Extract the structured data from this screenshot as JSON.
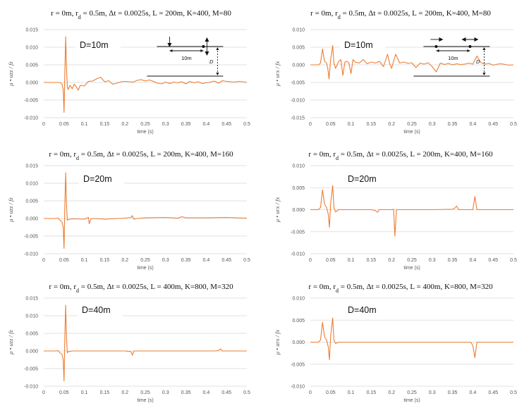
{
  "chart_data": [
    {
      "type": "line",
      "title": "r = 0m,   rd = 0.5m,   Δt = 0.0025s,   L = 200m,   K=400,   M=80",
      "panel_label": "D=10m",
      "ylabel": "μ • uzz / fz",
      "xlabel": "time (s)",
      "xlim": [
        0,
        0.5
      ],
      "ylim": [
        -0.01,
        0.015
      ],
      "yticks": [
        "0.015",
        "0.010",
        "0.005",
        "0.000",
        "-0.005",
        "-0.010"
      ],
      "xticks": [
        "0",
        "0.05",
        "0.1",
        "0.15",
        "0.2",
        "0.25",
        "0.3",
        "0.35",
        "0.4",
        "0.45",
        "0.5"
      ],
      "grid": true,
      "color": "#ed7d31",
      "inset": {
        "spacing_label": "10m",
        "depth_label": "D",
        "arrows": "vertical"
      },
      "series": [
        {
          "x": [
            0,
            0.04,
            0.045,
            0.048,
            0.05,
            0.052,
            0.054,
            0.056,
            0.058,
            0.06,
            0.065,
            0.07,
            0.075,
            0.08,
            0.085,
            0.09,
            0.1,
            0.11,
            0.12,
            0.13,
            0.14,
            0.15,
            0.16,
            0.17,
            0.18,
            0.19,
            0.2,
            0.21,
            0.22,
            0.23,
            0.24,
            0.25,
            0.26,
            0.27,
            0.28,
            0.29,
            0.3,
            0.31,
            0.32,
            0.33,
            0.34,
            0.35,
            0.36,
            0.37,
            0.38,
            0.39,
            0.4,
            0.41,
            0.42,
            0.43,
            0.44,
            0.45,
            0.46,
            0.47,
            0.48,
            0.49,
            0.5
          ],
          "y": [
            0,
            0,
            -0.0005,
            -0.002,
            -0.0085,
            0.003,
            0.013,
            0.004,
            -0.001,
            -0.002,
            -0.0008,
            -0.0018,
            -0.0005,
            -0.0012,
            -0.0022,
            -0.0008,
            -0.001,
            0.0003,
            0.0004,
            0.001,
            0.0015,
            0.0002,
            0.0005,
            -0.0005,
            -0.0002,
            0.0002,
            0.0003,
            0.0002,
            0.0001,
            0.0006,
            0.0008,
            0.0004,
            0.0007,
            0.0003,
            -0.0002,
            -0.0004,
            0.0001,
            -0.0003,
            0.0001,
            -0.0001,
            0.0002,
            -0.0004,
            0.0003,
            -0.0001,
            0.0002,
            -0.0003,
            -0.0001,
            0.0001,
            0.0004,
            -0.0002,
            0.0005,
            0.0003,
            0.0002,
            0.0001,
            0.0003,
            0.0002,
            0
          ]
        }
      ]
    },
    {
      "type": "line",
      "title": "r = 0m,   rd = 0.5m,   Δt = 0.0025s,   L = 200m,   K=400,   M=80",
      "panel_label": "D=10m",
      "ylabel": "μ • urx / fx",
      "xlabel": "time (s)",
      "xlim": [
        0,
        0.5
      ],
      "ylim": [
        -0.015,
        0.01
      ],
      "yticks": [
        "0.010",
        "0.005",
        "0.000",
        "-0.005",
        "-0.010",
        "-0.015"
      ],
      "xticks": [
        "0",
        "0.05",
        "0.1",
        "0.15",
        "0.2",
        "0.25",
        "0.3",
        "0.35",
        "0.4",
        "0.45",
        "0.5"
      ],
      "grid": true,
      "color": "#ed7d31",
      "inset": {
        "spacing_label": "10m",
        "depth_label": "D",
        "arrows": "horizontal"
      },
      "series": [
        {
          "x": [
            0,
            0.02,
            0.025,
            0.03,
            0.035,
            0.04,
            0.043,
            0.046,
            0.05,
            0.055,
            0.058,
            0.062,
            0.07,
            0.075,
            0.08,
            0.085,
            0.09,
            0.095,
            0.1,
            0.105,
            0.11,
            0.12,
            0.13,
            0.14,
            0.15,
            0.16,
            0.17,
            0.18,
            0.19,
            0.195,
            0.2,
            0.21,
            0.22,
            0.23,
            0.24,
            0.25,
            0.26,
            0.27,
            0.28,
            0.29,
            0.3,
            0.31,
            0.32,
            0.33,
            0.34,
            0.35,
            0.36,
            0.37,
            0.38,
            0.39,
            0.4,
            0.41,
            0.42,
            0.43,
            0.44,
            0.45,
            0.46,
            0.47,
            0.48,
            0.49,
            0.5
          ],
          "y": [
            0,
            0,
            0.0005,
            0.0045,
            0.001,
            0.0005,
            -0.001,
            -0.004,
            0.0015,
            0.0055,
            0.0005,
            -0.001,
            0.001,
            0.0015,
            -0.003,
            0.0008,
            0.001,
            0.0005,
            -0.0025,
            0.0015,
            0.0008,
            0.0005,
            0.0015,
            0.0003,
            0.0008,
            0.0005,
            0.001,
            -0.0005,
            0.003,
            0.0005,
            -0.001,
            0.003,
            0.0005,
            0.0008,
            0.0004,
            0.0006,
            -0.0008,
            0.0005,
            0.0002,
            0.0006,
            -0.0005,
            -0.002,
            0.0005,
            0.0001,
            0.0004,
            0,
            0.0003,
            0.0001,
            0.0002,
            0.0005,
            0.0002,
            0.0025,
            0.0006,
            0.0002,
            0.0004,
            -0.0001,
            0.0002,
            0.0003,
            0.0001,
            -0.0001,
            0
          ]
        }
      ]
    },
    {
      "type": "line",
      "title": "r = 0m,   rd = 0.5m,   Δt = 0.0025s,   L = 200m,   K=400,   M=160",
      "panel_label": "D=20m",
      "ylabel": "μ • uzz / fz",
      "xlabel": "time (s)",
      "xlim": [
        0,
        0.5
      ],
      "ylim": [
        -0.01,
        0.015
      ],
      "yticks": [
        "0.015",
        "0.010",
        "0.005",
        "0.000",
        "-0.005",
        "-0.010"
      ],
      "xticks": [
        "0",
        "0.05",
        "0.1",
        "0.15",
        "0.2",
        "0.25",
        "0.3",
        "0.35",
        "0.4",
        "0.45",
        "0.5"
      ],
      "grid": true,
      "color": "#ed7d31",
      "series": [
        {
          "x": [
            0,
            0.03,
            0.035,
            0.04,
            0.045,
            0.048,
            0.05,
            0.052,
            0.054,
            0.056,
            0.058,
            0.06,
            0.07,
            0.1,
            0.11,
            0.112,
            0.116,
            0.12,
            0.15,
            0.2,
            0.215,
            0.218,
            0.222,
            0.23,
            0.25,
            0.3,
            0.33,
            0.34,
            0.35,
            0.4,
            0.45,
            0.5
          ],
          "y": [
            0,
            0,
            0.0001,
            -0.0005,
            -0.001,
            -0.0025,
            -0.0085,
            0.004,
            0.013,
            0.004,
            -0.0005,
            -0.0003,
            -0.0001,
            -0.0002,
            0.0003,
            -0.0015,
            -0.0002,
            0,
            -0.0002,
            0.0001,
            0.0003,
            0.0008,
            -0.0002,
            0,
            0.0002,
            0.0003,
            0.0001,
            0.0005,
            0.0002,
            0.0002,
            0.0003,
            0.0001
          ]
        }
      ]
    },
    {
      "type": "line",
      "title": "r = 0m,   rd = 0.5m,   Δt = 0.0025s,   L = 200m,   K=400,   M=160",
      "panel_label": "D=20m",
      "ylabel": "μ • urx / fx",
      "xlabel": "time (s)",
      "xlim": [
        0,
        0.5
      ],
      "ylim": [
        -0.01,
        0.01
      ],
      "yticks": [
        "0.010",
        "0.005",
        "0.000",
        "-0.005",
        "-0.010"
      ],
      "xticks": [
        "0",
        "0.05",
        "0.1",
        "0.15",
        "0.2",
        "0.25",
        "0.3",
        "0.35",
        "0.4",
        "0.45",
        "0.5"
      ],
      "grid": true,
      "color": "#ed7d31",
      "series": [
        {
          "x": [
            0,
            0.02,
            0.025,
            0.03,
            0.035,
            0.04,
            0.044,
            0.047,
            0.05,
            0.055,
            0.058,
            0.062,
            0.07,
            0.1,
            0.15,
            0.16,
            0.165,
            0.17,
            0.2,
            0.205,
            0.208,
            0.212,
            0.25,
            0.3,
            0.35,
            0.355,
            0.36,
            0.365,
            0.4,
            0.405,
            0.41,
            0.45,
            0.5
          ],
          "y": [
            0,
            0,
            0.0005,
            0.0045,
            0.0012,
            0.0005,
            -0.001,
            -0.004,
            0.0015,
            0.0055,
            0.0005,
            -0.0005,
            0,
            0,
            0,
            -0.0002,
            -0.0006,
            0,
            0,
            0.0001,
            -0.006,
            0,
            0,
            0,
            0.0001,
            0.0003,
            0.0008,
            0,
            0,
            0.003,
            0,
            0,
            0
          ]
        }
      ]
    },
    {
      "type": "line",
      "title": "r = 0m,   rd = 0.5m,   Δt = 0.0025s,   L = 400m,   K=800,   M=320",
      "panel_label": "D=40m",
      "ylabel": "μ • uzz / fz",
      "xlabel": "time (s)",
      "xlim": [
        0,
        0.5
      ],
      "ylim": [
        -0.01,
        0.015
      ],
      "yticks": [
        "0.015",
        "0.010",
        "0.005",
        "0.000",
        "-0.005",
        "-0.010"
      ],
      "xticks": [
        "0",
        "0.05",
        "0.1",
        "0.15",
        "0.2",
        "0.25",
        "0.3",
        "0.35",
        "0.4",
        "0.45",
        "0.5"
      ],
      "grid": true,
      "color": "#ed7d31",
      "series": [
        {
          "x": [
            0,
            0.03,
            0.035,
            0.04,
            0.045,
            0.048,
            0.05,
            0.052,
            0.054,
            0.056,
            0.058,
            0.06,
            0.07,
            0.1,
            0.2,
            0.215,
            0.218,
            0.222,
            0.23,
            0.3,
            0.42,
            0.43,
            0.435,
            0.44,
            0.5
          ],
          "y": [
            0,
            0,
            0.0001,
            -0.0005,
            -0.001,
            -0.0025,
            -0.0085,
            0.004,
            0.013,
            0.004,
            -0.0005,
            -0.0002,
            0,
            0,
            0,
            -0.0002,
            -0.0012,
            0,
            0,
            0,
            0,
            0.0001,
            0.0006,
            0,
            0
          ]
        }
      ]
    },
    {
      "type": "line",
      "title": "r = 0m,   rd = 0.5m,   Δt = 0.0025s,   L = 400m,   K=800,   M=320",
      "panel_label": "D=40m",
      "ylabel": "μ • urx / fx",
      "xlabel": "time (s)",
      "xlim": [
        0,
        0.5
      ],
      "ylim": [
        -0.01,
        0.01
      ],
      "yticks": [
        "0.010",
        "0.005",
        "0.000",
        "-0.005",
        "-0.010"
      ],
      "xticks": [
        "0",
        "0.05",
        "0.1",
        "0.15",
        "0.2",
        "0.25",
        "0.3",
        "0.35",
        "0.4",
        "0.45",
        "0.5"
      ],
      "grid": true,
      "color": "#ed7d31",
      "series": [
        {
          "x": [
            0,
            0.02,
            0.025,
            0.03,
            0.035,
            0.04,
            0.044,
            0.047,
            0.05,
            0.055,
            0.058,
            0.062,
            0.07,
            0.1,
            0.3,
            0.395,
            0.4,
            0.405,
            0.41,
            0.45,
            0.5
          ],
          "y": [
            0,
            0,
            0.0005,
            0.0045,
            0.0012,
            0.0005,
            -0.001,
            -0.004,
            0.0015,
            0.0055,
            0.0005,
            -0.0003,
            0,
            0,
            0,
            0,
            -0.0008,
            -0.0035,
            0,
            0,
            0
          ]
        }
      ]
    }
  ]
}
